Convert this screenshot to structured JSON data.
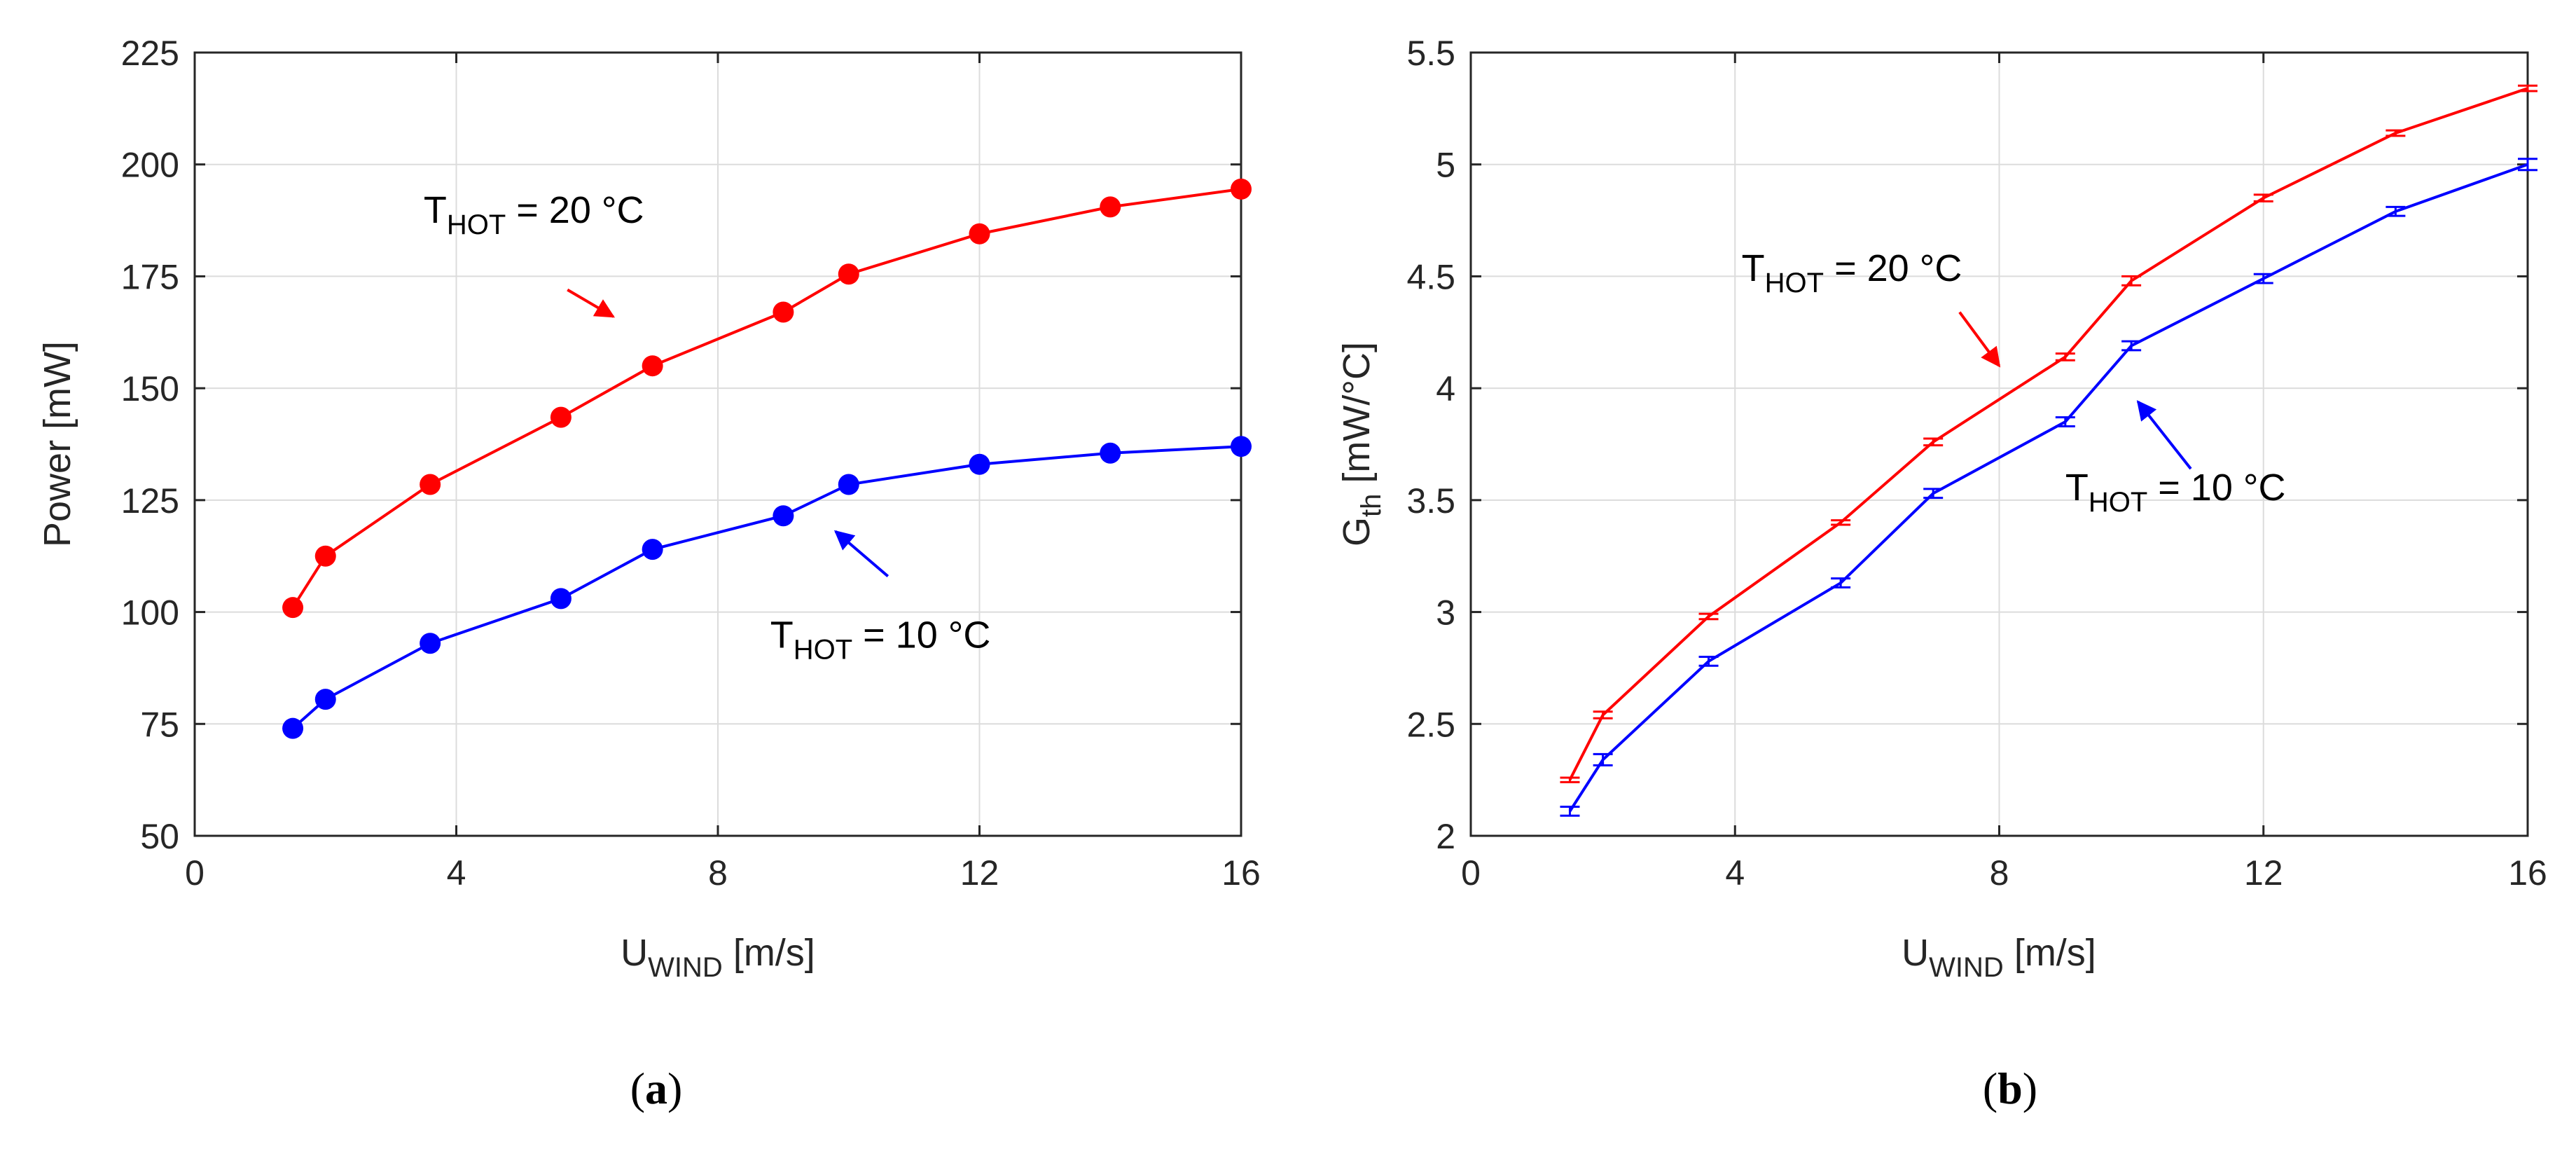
{
  "colors": {
    "red": "#ff0000",
    "blue": "#0000ff",
    "axis": "#262626",
    "grid": "#dcdcdc"
  },
  "chart_data": [
    {
      "type": "line",
      "panel": "a",
      "caption": {
        "open": "(",
        "letter": "a",
        "close": ")"
      },
      "xlabel": {
        "main": "U",
        "sub": "WIND",
        "unit": " [m/s]"
      },
      "ylabel": "Power [mW]",
      "xlim": [
        0,
        16
      ],
      "ylim": [
        50,
        225
      ],
      "xticks": [
        0,
        4,
        8,
        12,
        16
      ],
      "yticks": [
        50,
        75,
        100,
        125,
        150,
        175,
        200,
        225
      ],
      "grid": true,
      "markers": "filled-circle",
      "x": [
        1.5,
        2,
        3.6,
        5.6,
        7,
        9,
        10,
        12,
        14,
        16
      ],
      "series": [
        {
          "name": "T_HOT = 20 °C",
          "color": "red",
          "values": [
            101,
            112.5,
            128.5,
            143.5,
            155,
            167,
            175.5,
            184.5,
            190.5,
            194.5
          ]
        },
        {
          "name": "T_HOT = 10 °C",
          "color": "blue",
          "values": [
            74,
            80.5,
            93,
            103,
            114,
            121.5,
            128.5,
            133,
            135.5,
            137
          ]
        }
      ],
      "annotations": [
        {
          "main": "T",
          "sub": "HOT",
          "rest": " = 20 °C",
          "color": "red",
          "text_at": [
            3.5,
            187
          ],
          "arrow_from": [
            5.7,
            172
          ],
          "arrow_to": [
            6.4,
            166
          ]
        },
        {
          "main": "T",
          "sub": "HOT",
          "rest": " = 10 °C",
          "color": "blue",
          "text_at": [
            8.8,
            92
          ],
          "arrow_from": [
            10.6,
            108
          ],
          "arrow_to": [
            9.8,
            118
          ]
        }
      ]
    },
    {
      "type": "line",
      "panel": "b",
      "caption": {
        "open": "(",
        "letter": "b",
        "close": ")"
      },
      "xlabel": {
        "main": "U",
        "sub": "WIND",
        "unit": " [m/s]"
      },
      "ylabel": {
        "main": "G",
        "sub": "th",
        "unit": " [mW/°C]"
      },
      "xlim": [
        0,
        16
      ],
      "ylim": [
        2,
        5.5
      ],
      "xticks": [
        0,
        4,
        8,
        12,
        16
      ],
      "yticks": [
        2,
        2.5,
        3,
        3.5,
        4,
        4.5,
        5,
        5.5
      ],
      "grid": true,
      "markers": "errorbar",
      "x": [
        1.5,
        2,
        3.6,
        5.6,
        7,
        9,
        10,
        12,
        14,
        16
      ],
      "series": [
        {
          "name": "T_HOT = 20 °C",
          "color": "red",
          "values": [
            2.25,
            2.54,
            2.98,
            3.4,
            3.76,
            4.14,
            4.48,
            4.85,
            5.14,
            5.34
          ],
          "err": [
            0.01,
            0.015,
            0.012,
            0.01,
            0.015,
            0.015,
            0.02,
            0.015,
            0.012,
            0.012
          ]
        },
        {
          "name": "T_HOT = 10 °C",
          "color": "blue",
          "values": [
            2.11,
            2.34,
            2.78,
            3.13,
            3.53,
            3.85,
            4.19,
            4.49,
            4.79,
            5.0
          ],
          "err": [
            0.02,
            0.025,
            0.02,
            0.02,
            0.02,
            0.02,
            0.02,
            0.02,
            0.02,
            0.025
          ]
        }
      ],
      "annotations": [
        {
          "main": "T",
          "sub": "HOT",
          "rest": " = 20 °C",
          "color": "red",
          "text_at": [
            4.1,
            4.48
          ],
          "arrow_from": [
            7.4,
            4.34
          ],
          "arrow_to": [
            8.0,
            4.1
          ]
        },
        {
          "main": "T",
          "sub": "HOT",
          "rest": " = 10 °C",
          "color": "blue",
          "text_at": [
            9.0,
            3.5
          ],
          "arrow_from": [
            10.9,
            3.64
          ],
          "arrow_to": [
            10.1,
            3.94
          ]
        }
      ]
    }
  ]
}
